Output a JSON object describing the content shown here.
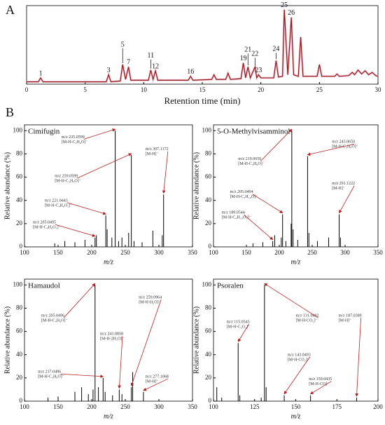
{
  "panel_labels": [
    "A",
    "B"
  ],
  "chart_data": [
    {
      "type": "line",
      "xlabel": "Retention time (min)",
      "color": "#8b1a1a",
      "x": [
        0,
        1.0,
        1.2,
        1.4,
        3,
        5,
        6.8,
        7.0,
        7.2,
        8.0,
        8.2,
        8.45,
        8.7,
        8.9,
        10.4,
        10.6,
        10.8,
        11.0,
        11.2,
        12.5,
        13.8,
        14.0,
        14.2,
        15.8,
        16.0,
        16.2,
        17.0,
        17.2,
        17.4,
        18.3,
        18.5,
        18.7,
        18.9,
        19.1,
        19.5,
        19.65,
        19.8,
        20.0,
        21.1,
        21.3,
        21.5,
        21.85,
        22.0,
        22.3,
        22.6,
        22.8,
        23.2,
        23.4,
        23.6,
        24.8,
        25.0,
        25.2,
        26.3,
        26.5,
        26.7,
        27.5,
        27.8,
        28.0,
        28.3,
        28.6,
        28.9,
        29.2,
        29.5,
        29.8,
        30
      ],
      "values": [
        3,
        3,
        8,
        3,
        3,
        3,
        3,
        12,
        3,
        4,
        25,
        6,
        22,
        5,
        5,
        18,
        6,
        17,
        5,
        5,
        5,
        10,
        5,
        6,
        12,
        6,
        6,
        14,
        6,
        7,
        27,
        8,
        22,
        8,
        22,
        8,
        12,
        8,
        8,
        30,
        9,
        10,
        95,
        12,
        85,
        12,
        10,
        60,
        10,
        10,
        25,
        10,
        10,
        13,
        10,
        11,
        15,
        12,
        18,
        13,
        17,
        12,
        15,
        11,
        10
      ],
      "xlim": [
        0,
        30
      ],
      "xticks": [
        0,
        5,
        10,
        15,
        20,
        25,
        30
      ],
      "ylim": [
        0,
        100
      ],
      "peaks": [
        {
          "label": "1",
          "x": 1.2,
          "y": 8
        },
        {
          "label": "3",
          "x": 7.0,
          "y": 12
        },
        {
          "label": "5",
          "x": 8.2,
          "y": 25
        },
        {
          "label": "7",
          "x": 8.7,
          "y": 22
        },
        {
          "label": "11",
          "x": 10.6,
          "y": 18
        },
        {
          "label": "12",
          "x": 11.0,
          "y": 17
        },
        {
          "label": "16",
          "x": 14.0,
          "y": 10
        },
        {
          "label": "19",
          "x": 18.5,
          "y": 27
        },
        {
          "label": "21",
          "x": 18.9,
          "y": 22
        },
        {
          "label": "22",
          "x": 19.5,
          "y": 22
        },
        {
          "label": "23",
          "x": 19.8,
          "y": 12
        },
        {
          "label": "24",
          "x": 21.3,
          "y": 30
        },
        {
          "label": "25",
          "x": 22.0,
          "y": 95
        },
        {
          "label": "26",
          "x": 22.6,
          "y": 85
        }
      ]
    },
    {
      "type": "stem",
      "title": "Cimifugin",
      "xlabel": "m/z",
      "ylabel": "Relative abundance (%)",
      "color": "#000000",
      "x": [
        145,
        160,
        175,
        190,
        205,
        207,
        221,
        223,
        230,
        235,
        240,
        245,
        255,
        259,
        263,
        275,
        291,
        305,
        307
      ],
      "values": [
        3,
        5,
        4,
        6,
        8,
        10,
        27,
        15,
        8,
        100,
        5,
        8,
        12,
        79,
        5,
        4,
        14,
        10,
        45
      ],
      "xlim": [
        100,
        350
      ],
      "xticks": [
        100,
        150,
        200,
        250,
        300,
        350
      ],
      "ylim": [
        0,
        105
      ],
      "yticks": [
        0,
        20,
        40,
        60,
        80,
        100
      ],
      "annotations": [
        {
          "text": "m/z 235.0599",
          "ion": "[M-H-C₂H₆O]⁻"
        },
        {
          "text": "m/z 307.1172",
          "ion": "[M-H]⁻"
        },
        {
          "text": "m/z 259.0599",
          "ion": "[M-H-C₃H₄O]⁻"
        },
        {
          "text": "m/z 221.0443",
          "ion": "[M-H-C₄H₆O₂]⁻"
        },
        {
          "text": "m/z 205.0495",
          "ion": "[M-H-C₄H₆O₃]⁻"
        }
      ]
    },
    {
      "type": "stem",
      "title": "5-O-Methylvisamminol",
      "xlabel": "m/z",
      "ylabel": "Relative abundance (%)",
      "color": "#000000",
      "x": [
        160,
        175,
        190,
        193,
        203,
        205,
        210,
        218,
        219,
        221,
        228,
        243,
        245,
        258,
        275,
        291,
        293
      ],
      "values": [
        3,
        4,
        5,
        10,
        8,
        28,
        5,
        20,
        100,
        15,
        6,
        78,
        12,
        5,
        8,
        28,
        8
      ],
      "xlim": [
        100,
        350
      ],
      "xticks": [
        100,
        150,
        200,
        250,
        300,
        350
      ],
      "ylim": [
        0,
        105
      ],
      "yticks": [
        0,
        20,
        40,
        60,
        80,
        100
      ],
      "annotations": [
        {
          "text": "m/z 219.0650",
          "ion": "[M-H-C₃H₈O]⁻"
        },
        {
          "text": "m/z 243.0650",
          "ion": "[M-H-C₂H₆O]⁻"
        },
        {
          "text": "m/z 291.1222",
          "ion": "[M-H]⁻"
        },
        {
          "text": "m/z 205.0494",
          "ion": "[M-H-C₄H₁₀O]⁻"
        },
        {
          "text": "m/z 189.0544",
          "ion": "[M-H-C₄H₁₀O₂]⁻"
        }
      ]
    },
    {
      "type": "stem",
      "title": "Hamaudol",
      "xlabel": "m/z",
      "ylabel": "Relative abundance (%)",
      "color": "#000000",
      "x": [
        135,
        150,
        175,
        185,
        195,
        202,
        205,
        210,
        217,
        220,
        231,
        241,
        245,
        259,
        261,
        277
      ],
      "values": [
        3,
        4,
        8,
        12,
        6,
        10,
        100,
        12,
        20,
        8,
        5,
        10,
        6,
        12,
        25,
        8
      ],
      "xlim": [
        100,
        350
      ],
      "xticks": [
        100,
        150,
        200,
        250,
        300,
        350
      ],
      "ylim": [
        0,
        105
      ],
      "yticks": [
        0,
        20,
        40,
        60,
        80,
        100
      ],
      "annotations": [
        {
          "text": "m/z 205.0496",
          "ion": "[M-H-C₄H₈O]⁻"
        },
        {
          "text": "m/z 259.0964",
          "ion": "[M-H-H₂O]⁻"
        },
        {
          "text": "m/z 241.0858",
          "ion": "[M-H-2H₂O]⁻"
        },
        {
          "text": "m/z 217.0496",
          "ion": "[M-H-C₃H₈O]⁻"
        },
        {
          "text": "m/z 277.1068",
          "ion": "[M-H]⁻"
        }
      ]
    },
    {
      "type": "stem",
      "title": "Psoralen",
      "xlabel": "m/z",
      "ylabel": "Relative abundance (%)",
      "color": "#000000",
      "x": [
        102,
        105,
        115,
        116,
        129,
        131,
        132,
        143,
        159,
        187
      ],
      "values": [
        12,
        3,
        50,
        5,
        3,
        100,
        12,
        5,
        5,
        3
      ],
      "xlim": [
        100,
        200
      ],
      "xticks": [
        100,
        125,
        150,
        175,
        200
      ],
      "ylim": [
        0,
        105
      ],
      "yticks": [
        0,
        20,
        40,
        60,
        80,
        100
      ],
      "annotations": [
        {
          "text": "m/z 115.0545",
          "ion": "[M-H-C₂O₃]⁻"
        },
        {
          "text": "m/z 131.0492",
          "ion": "[M-H-CO₂]⁻"
        },
        {
          "text": "m/z 187.0389",
          "ion": "[M-H]⁻"
        },
        {
          "text": "m/z 143.0493",
          "ion": "[M-H-CO₂]⁻"
        },
        {
          "text": "m/z 159.0435",
          "ion": "[M-H-CO]⁻"
        }
      ]
    }
  ]
}
